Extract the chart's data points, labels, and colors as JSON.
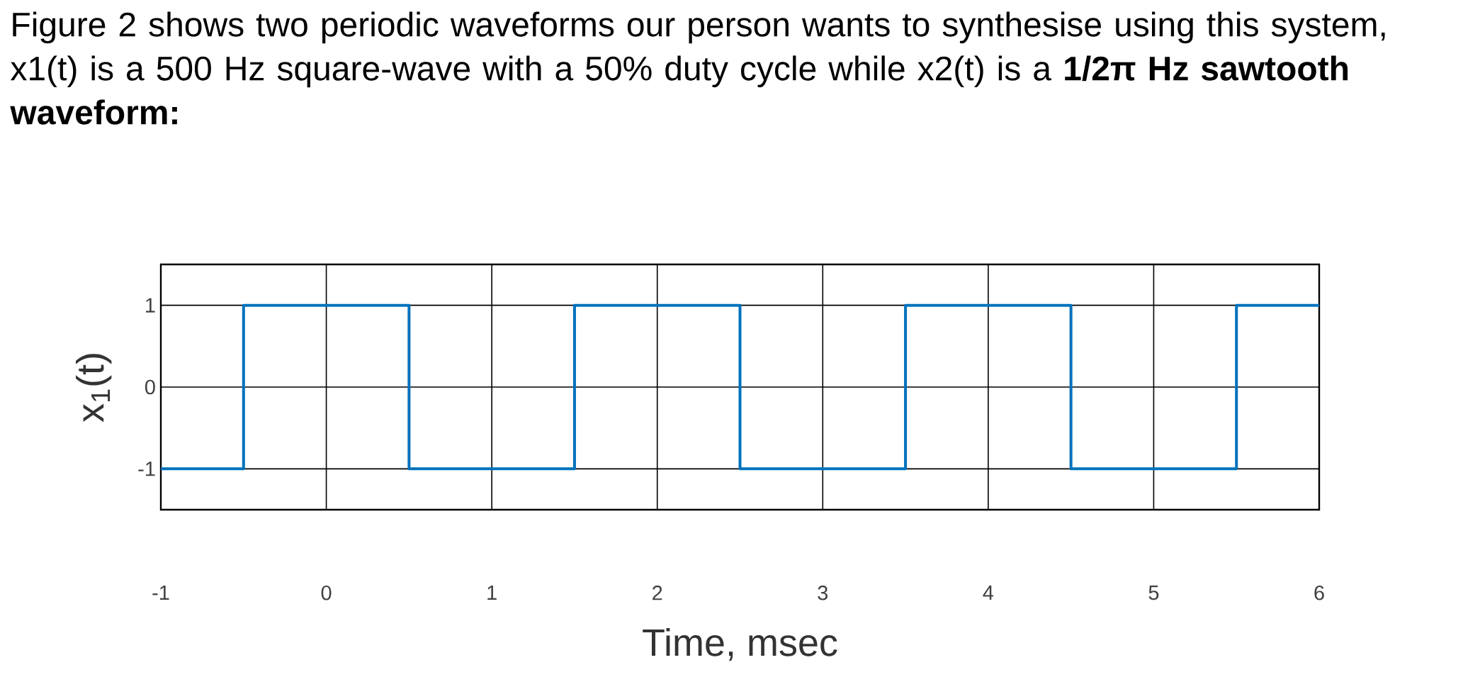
{
  "chart_data": {
    "type": "step",
    "title": "Figure 2 shows two periodic waveforms our person wants to synthesise using this system, x1(t) is a 500 Hz square-wave with a 50% duty cycle while x2(t) is a **1/2π Hz sawtooth waveform:**",
    "xlabel": "Time, msec",
    "ylabel": "x$_{1}$(t)",
    "x": [
      -1,
      -0.5,
      0.5,
      1.5,
      2.5,
      3.5,
      4.5,
      5.5,
      6
    ],
    "series": [
      {
        "color": "#0072bd",
        "values": [
          -1,
          1,
          -1,
          1,
          -1,
          1,
          -1,
          1,
          1
        ]
      }
    ],
    "xlim": [
      -1,
      6
    ],
    "ylim": [
      -1.5,
      1.5
    ],
    "xticks": [
      -1,
      0,
      1,
      2,
      3,
      4,
      5,
      6
    ],
    "yticks": [
      -1,
      0,
      1
    ],
    "grid": true
  }
}
